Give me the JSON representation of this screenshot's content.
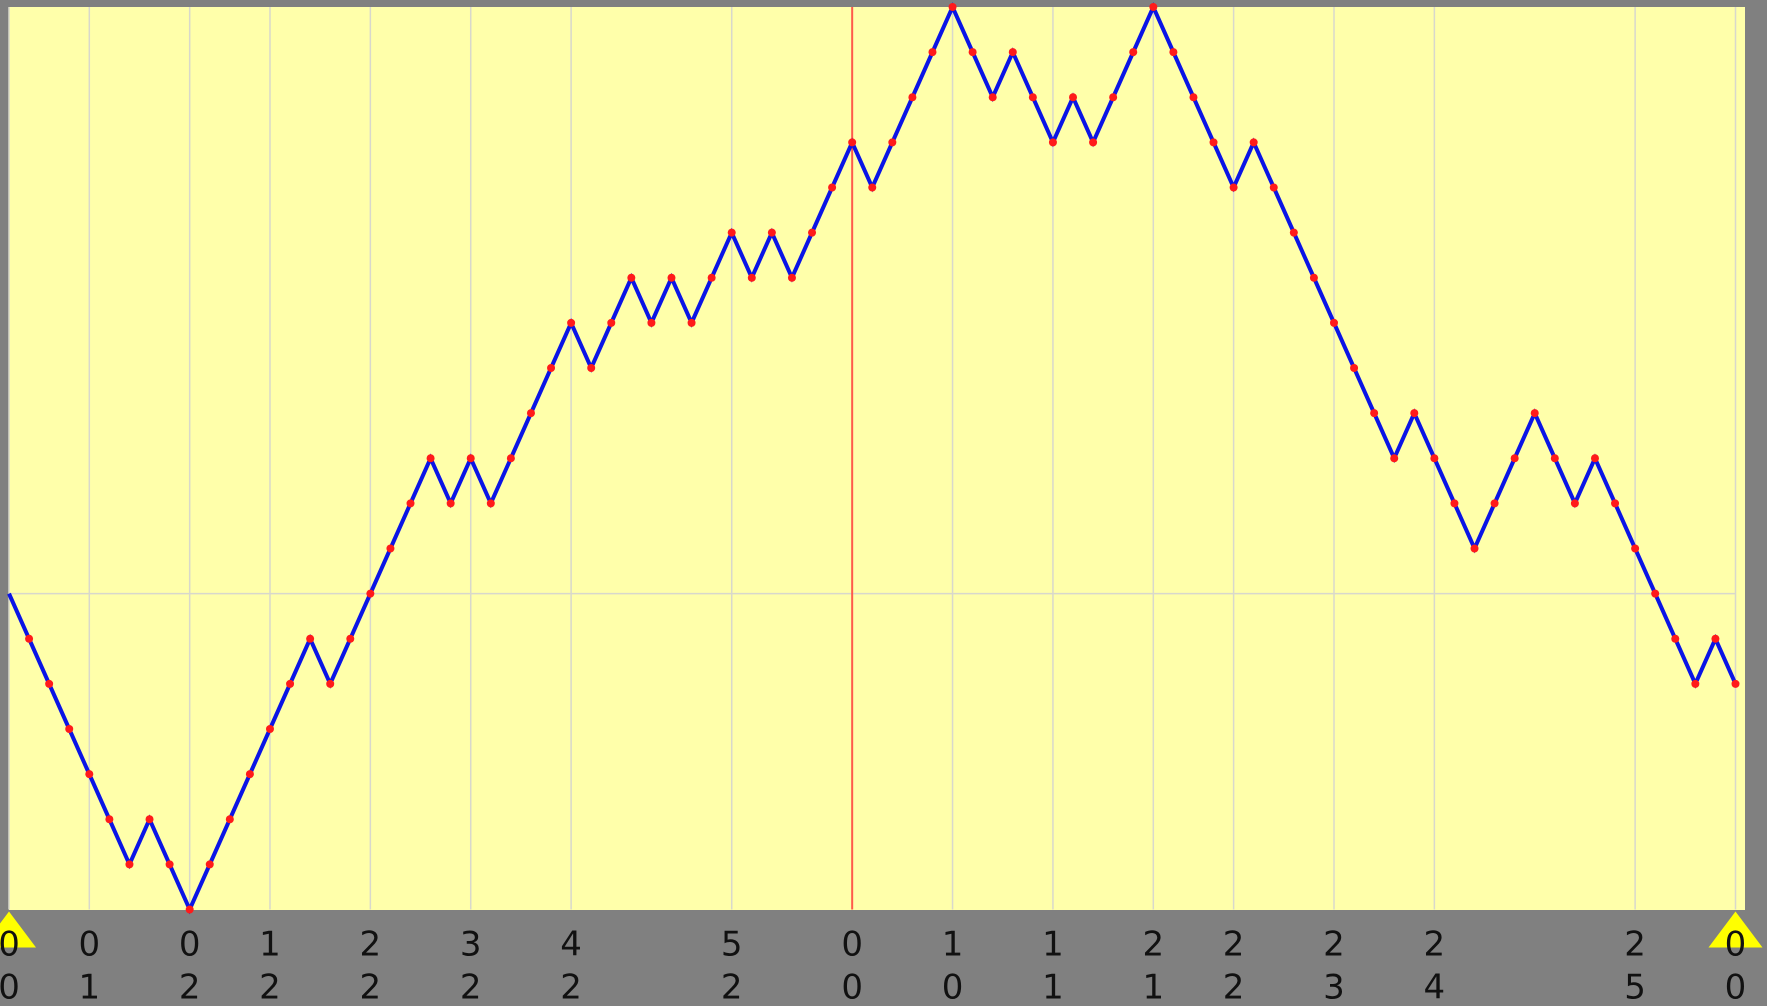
{
  "chart_data": {
    "type": "line",
    "values": [
      7,
      6,
      5,
      4,
      3,
      2,
      1,
      2,
      1,
      0,
      1,
      2,
      3,
      4,
      5,
      6,
      5,
      6,
      7,
      8,
      9,
      10,
      9,
      10,
      9,
      10,
      11,
      12,
      13,
      12,
      13,
      14,
      13,
      14,
      13,
      14,
      15,
      14,
      15,
      14,
      15,
      16,
      17,
      16,
      17,
      18,
      19,
      20,
      19,
      18,
      19,
      18,
      17,
      18,
      17,
      18,
      19,
      20,
      19,
      18,
      17,
      16,
      17,
      16,
      15,
      14,
      13,
      12,
      11,
      10,
      11,
      10,
      9,
      8,
      9,
      10,
      11,
      10,
      9,
      10,
      9,
      8,
      7,
      6,
      5,
      6,
      5
    ],
    "line_color": "#0a14e6",
    "marker_color": "#ff1a1a",
    "xlim": [
      0,
      86
    ],
    "ylim": [
      0,
      20
    ],
    "xticks": [
      {
        "value": 0,
        "label": [
          "0",
          "0"
        ]
      },
      {
        "value": 4,
        "label": [
          "0",
          "1"
        ]
      },
      {
        "value": 9,
        "label": [
          "0",
          "2"
        ]
      },
      {
        "value": 13,
        "label": [
          "1",
          "2"
        ]
      },
      {
        "value": 18,
        "label": [
          "2",
          "2"
        ]
      },
      {
        "value": 23,
        "label": [
          "3",
          "2"
        ]
      },
      {
        "value": 28,
        "label": [
          "4",
          "2"
        ]
      },
      {
        "value": 36,
        "label": [
          "5",
          "2"
        ]
      },
      {
        "value": 42,
        "label": [
          "0",
          "0"
        ]
      },
      {
        "value": 47,
        "label": [
          "1",
          "0"
        ]
      },
      {
        "value": 52,
        "label": [
          "1",
          "1"
        ]
      },
      {
        "value": 57,
        "label": [
          "2",
          "1"
        ]
      },
      {
        "value": 61,
        "label": [
          "2",
          "2"
        ]
      },
      {
        "value": 66,
        "label": [
          "2",
          "3"
        ]
      },
      {
        "value": 71,
        "label": [
          "2",
          "4"
        ]
      },
      {
        "value": 81,
        "label": [
          "2",
          "5"
        ]
      },
      {
        "value": 86,
        "label": [
          "0",
          "0"
        ]
      }
    ],
    "ygrid": [
      7
    ],
    "cursor": 42,
    "cursor_color": "#ff5a4a",
    "handles": [
      0,
      86
    ],
    "handle_color": "#ffff00",
    "grid": true
  }
}
